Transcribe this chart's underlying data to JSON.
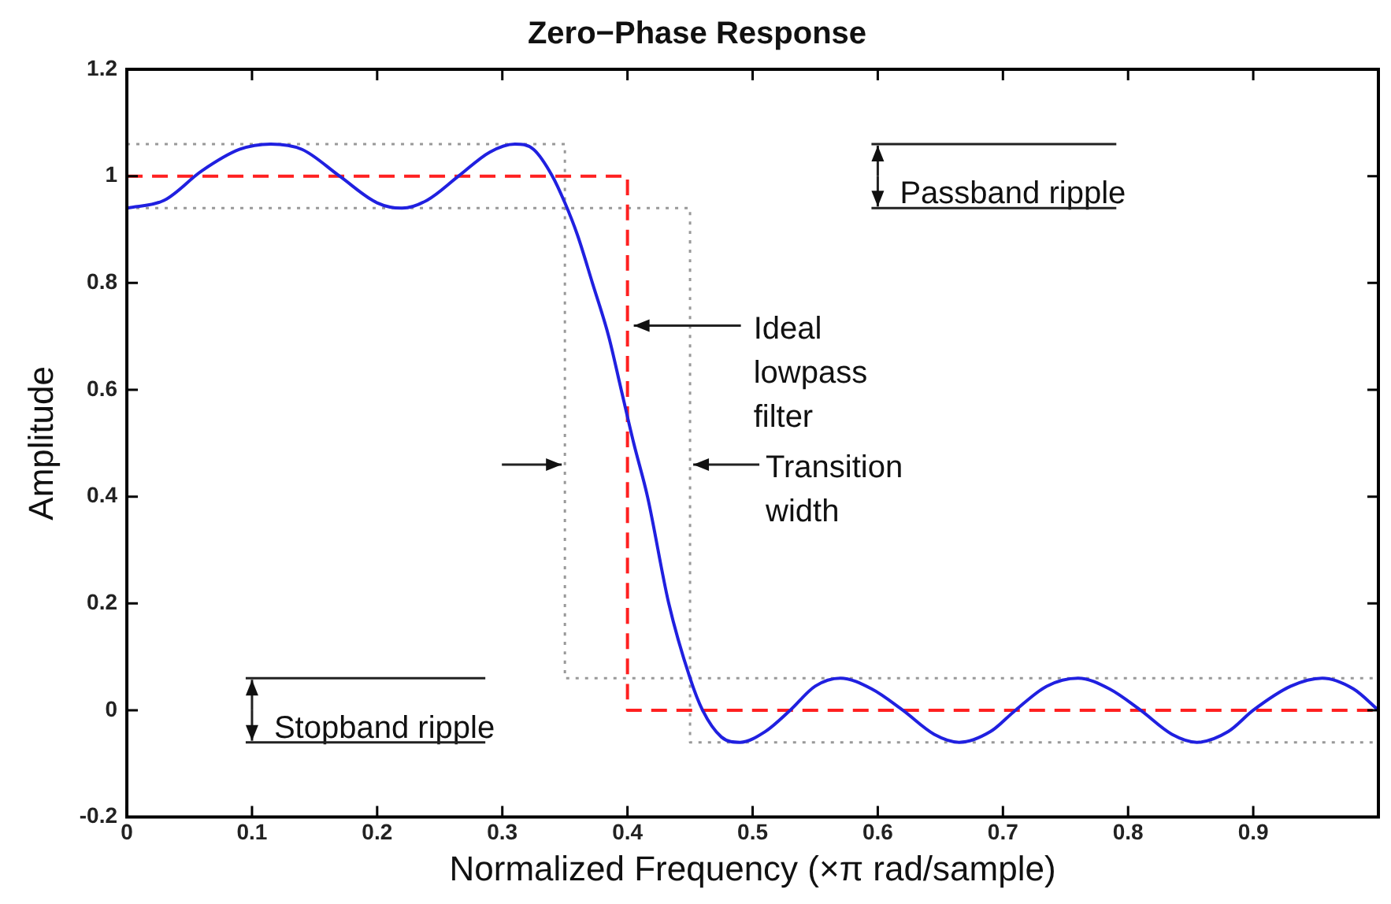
{
  "chart_data": {
    "type": "line",
    "title": "Zero−Phase Response",
    "xlabel": "Normalized Frequency (×π rad/sample)",
    "ylabel": "Amplitude",
    "xlim": [
      0,
      1
    ],
    "xticks": [
      0,
      0.1,
      0.2,
      0.3,
      0.4,
      0.5,
      0.6,
      0.7,
      0.8,
      0.9,
      {
        "value": 1,
        "label": null
      }
    ],
    "ylim": [
      -0.2,
      1.2
    ],
    "yticks": [
      -0.2,
      0,
      0.2,
      0.4,
      0.6,
      0.8,
      1,
      1.2
    ],
    "grid": false,
    "legend": false,
    "marker": "none",
    "series": [
      {
        "color": "#2020e0",
        "line_style": "solid",
        "x": [
          0,
          0.03,
          0.06,
          0.09,
          0.115,
          0.14,
          0.17,
          0.2,
          0.22,
          0.24,
          0.265,
          0.29,
          0.31,
          0.325,
          0.34,
          0.35,
          0.36,
          0.372,
          0.385,
          0.395,
          0.405,
          0.416,
          0.433,
          0.45,
          0.46,
          0.475,
          0.49,
          0.51,
          0.53,
          0.55,
          0.57,
          0.595,
          0.62,
          0.645,
          0.665,
          0.69,
          0.71,
          0.735,
          0.76,
          0.785,
          0.81,
          0.835,
          0.855,
          0.88,
          0.9,
          0.93,
          0.955,
          0.98,
          1
        ],
        "values": [
          0.94,
          0.955,
          1.01,
          1.05,
          1.06,
          1.05,
          1.0,
          0.95,
          0.94,
          0.955,
          1.0,
          1.045,
          1.06,
          1.05,
          1.0,
          0.95,
          0.89,
          0.8,
          0.7,
          0.6,
          0.5,
          0.4,
          0.2,
          0.06,
          0.0,
          -0.05,
          -0.06,
          -0.04,
          0,
          0.045,
          0.06,
          0.04,
          0,
          -0.045,
          -0.06,
          -0.04,
          0,
          0.045,
          0.06,
          0.04,
          0,
          -0.045,
          -0.06,
          -0.04,
          0,
          0.045,
          0.06,
          0.04,
          0
        ]
      },
      {
        "color": "#ff2020",
        "line_style": "dashed",
        "x": [
          0,
          0.4,
          0.4,
          1
        ],
        "values": [
          1,
          1,
          0,
          0
        ]
      },
      {
        "color": "#999999",
        "line_style": "dotted",
        "x": [
          0,
          0.35,
          0.35,
          1
        ],
        "values": [
          1.06,
          1.06,
          0.06,
          0.06
        ]
      },
      {
        "color": "#999999",
        "line_style": "dotted",
        "x": [
          0,
          0.45,
          0.45,
          1
        ],
        "values": [
          0.94,
          0.94,
          -0.06,
          -0.06
        ]
      }
    ],
    "annotations": [
      "Passband ripple",
      "Stopband ripple",
      {
        "text": "Ideal\nlowpass\nfilter",
        "x": 0.4,
        "y": 0.72
      },
      {
        "text": "Transition\nwidth",
        "x": 0.45,
        "y": 0.46
      }
    ]
  }
}
